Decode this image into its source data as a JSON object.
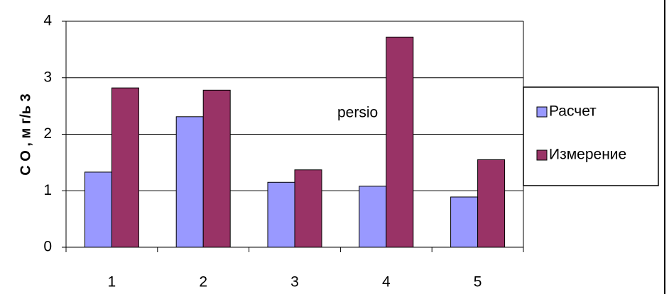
{
  "chart_data": {
    "type": "bar",
    "y_label": "С О ,  м г/ь 3",
    "annotation": "persio",
    "categories": [
      "1",
      "2",
      "3",
      "4",
      "5"
    ],
    "series": [
      {
        "name": "Расчет",
        "color": "#9999ff",
        "values": [
          1.33,
          2.31,
          1.15,
          1.08,
          0.89
        ]
      },
      {
        "name": "Измерение",
        "color": "#993366",
        "values": [
          2.82,
          2.78,
          1.37,
          3.72,
          1.55
        ]
      }
    ],
    "ylim": [
      0,
      4
    ],
    "yticks": [
      0,
      1,
      2,
      3,
      4
    ],
    "grid": true,
    "legend": "right"
  }
}
